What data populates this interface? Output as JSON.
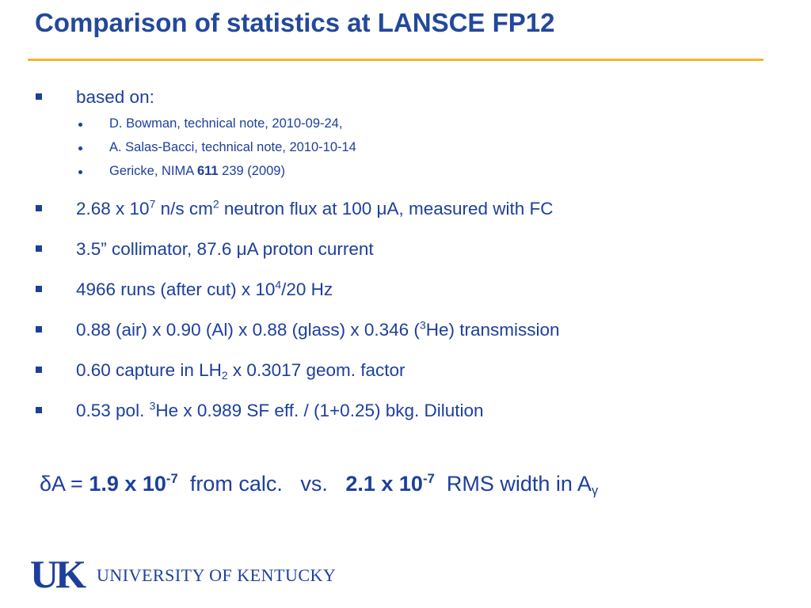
{
  "title": "Comparison of statistics at LANSCE FP12",
  "bullets": [
    {
      "parts": [
        "based on:"
      ],
      "sub": [
        {
          "parts": [
            "D. Bowman, technical note, 2010-09-24,"
          ]
        },
        {
          "parts": [
            "A. Salas-Bacci, technical note, 2010-10-14"
          ]
        },
        {
          "parts": [
            "Gericke, NIMA ",
            "611",
            " 239 (2009)"
          ]
        }
      ]
    },
    {
      "parts": [
        "2.68 x 10",
        "7",
        " n/s cm",
        "2",
        " neutron flux at 100 μA, measured with FC"
      ]
    },
    {
      "parts": [
        "3.5” collimator, 87.6 μA proton current"
      ]
    },
    {
      "parts": [
        "4966 runs (after cut) x 10",
        "4",
        "/20 Hz"
      ]
    },
    {
      "parts": [
        "0.88 (air) x 0.90 (Al) x 0.88 (glass) x 0.346 (",
        "3",
        "He) transmission"
      ]
    },
    {
      "parts": [
        "0.60 capture in LH",
        "2",
        " x 0.3017 geom. factor"
      ]
    },
    {
      "parts": [
        "0.53 pol. ",
        "3",
        "He x 0.989 SF eff. / (1+0.25) bkg. Dilution"
      ]
    }
  ],
  "summary": {
    "parts": [
      "δA = ",
      "1.9 x 10",
      "-7",
      "  from calc.   vs.   ",
      "2.1 x 10",
      "-7",
      "  RMS width in A",
      "γ"
    ]
  },
  "logo": {
    "mark": "UK",
    "text": "UNIVERSITY OF KENTUCKY"
  }
}
